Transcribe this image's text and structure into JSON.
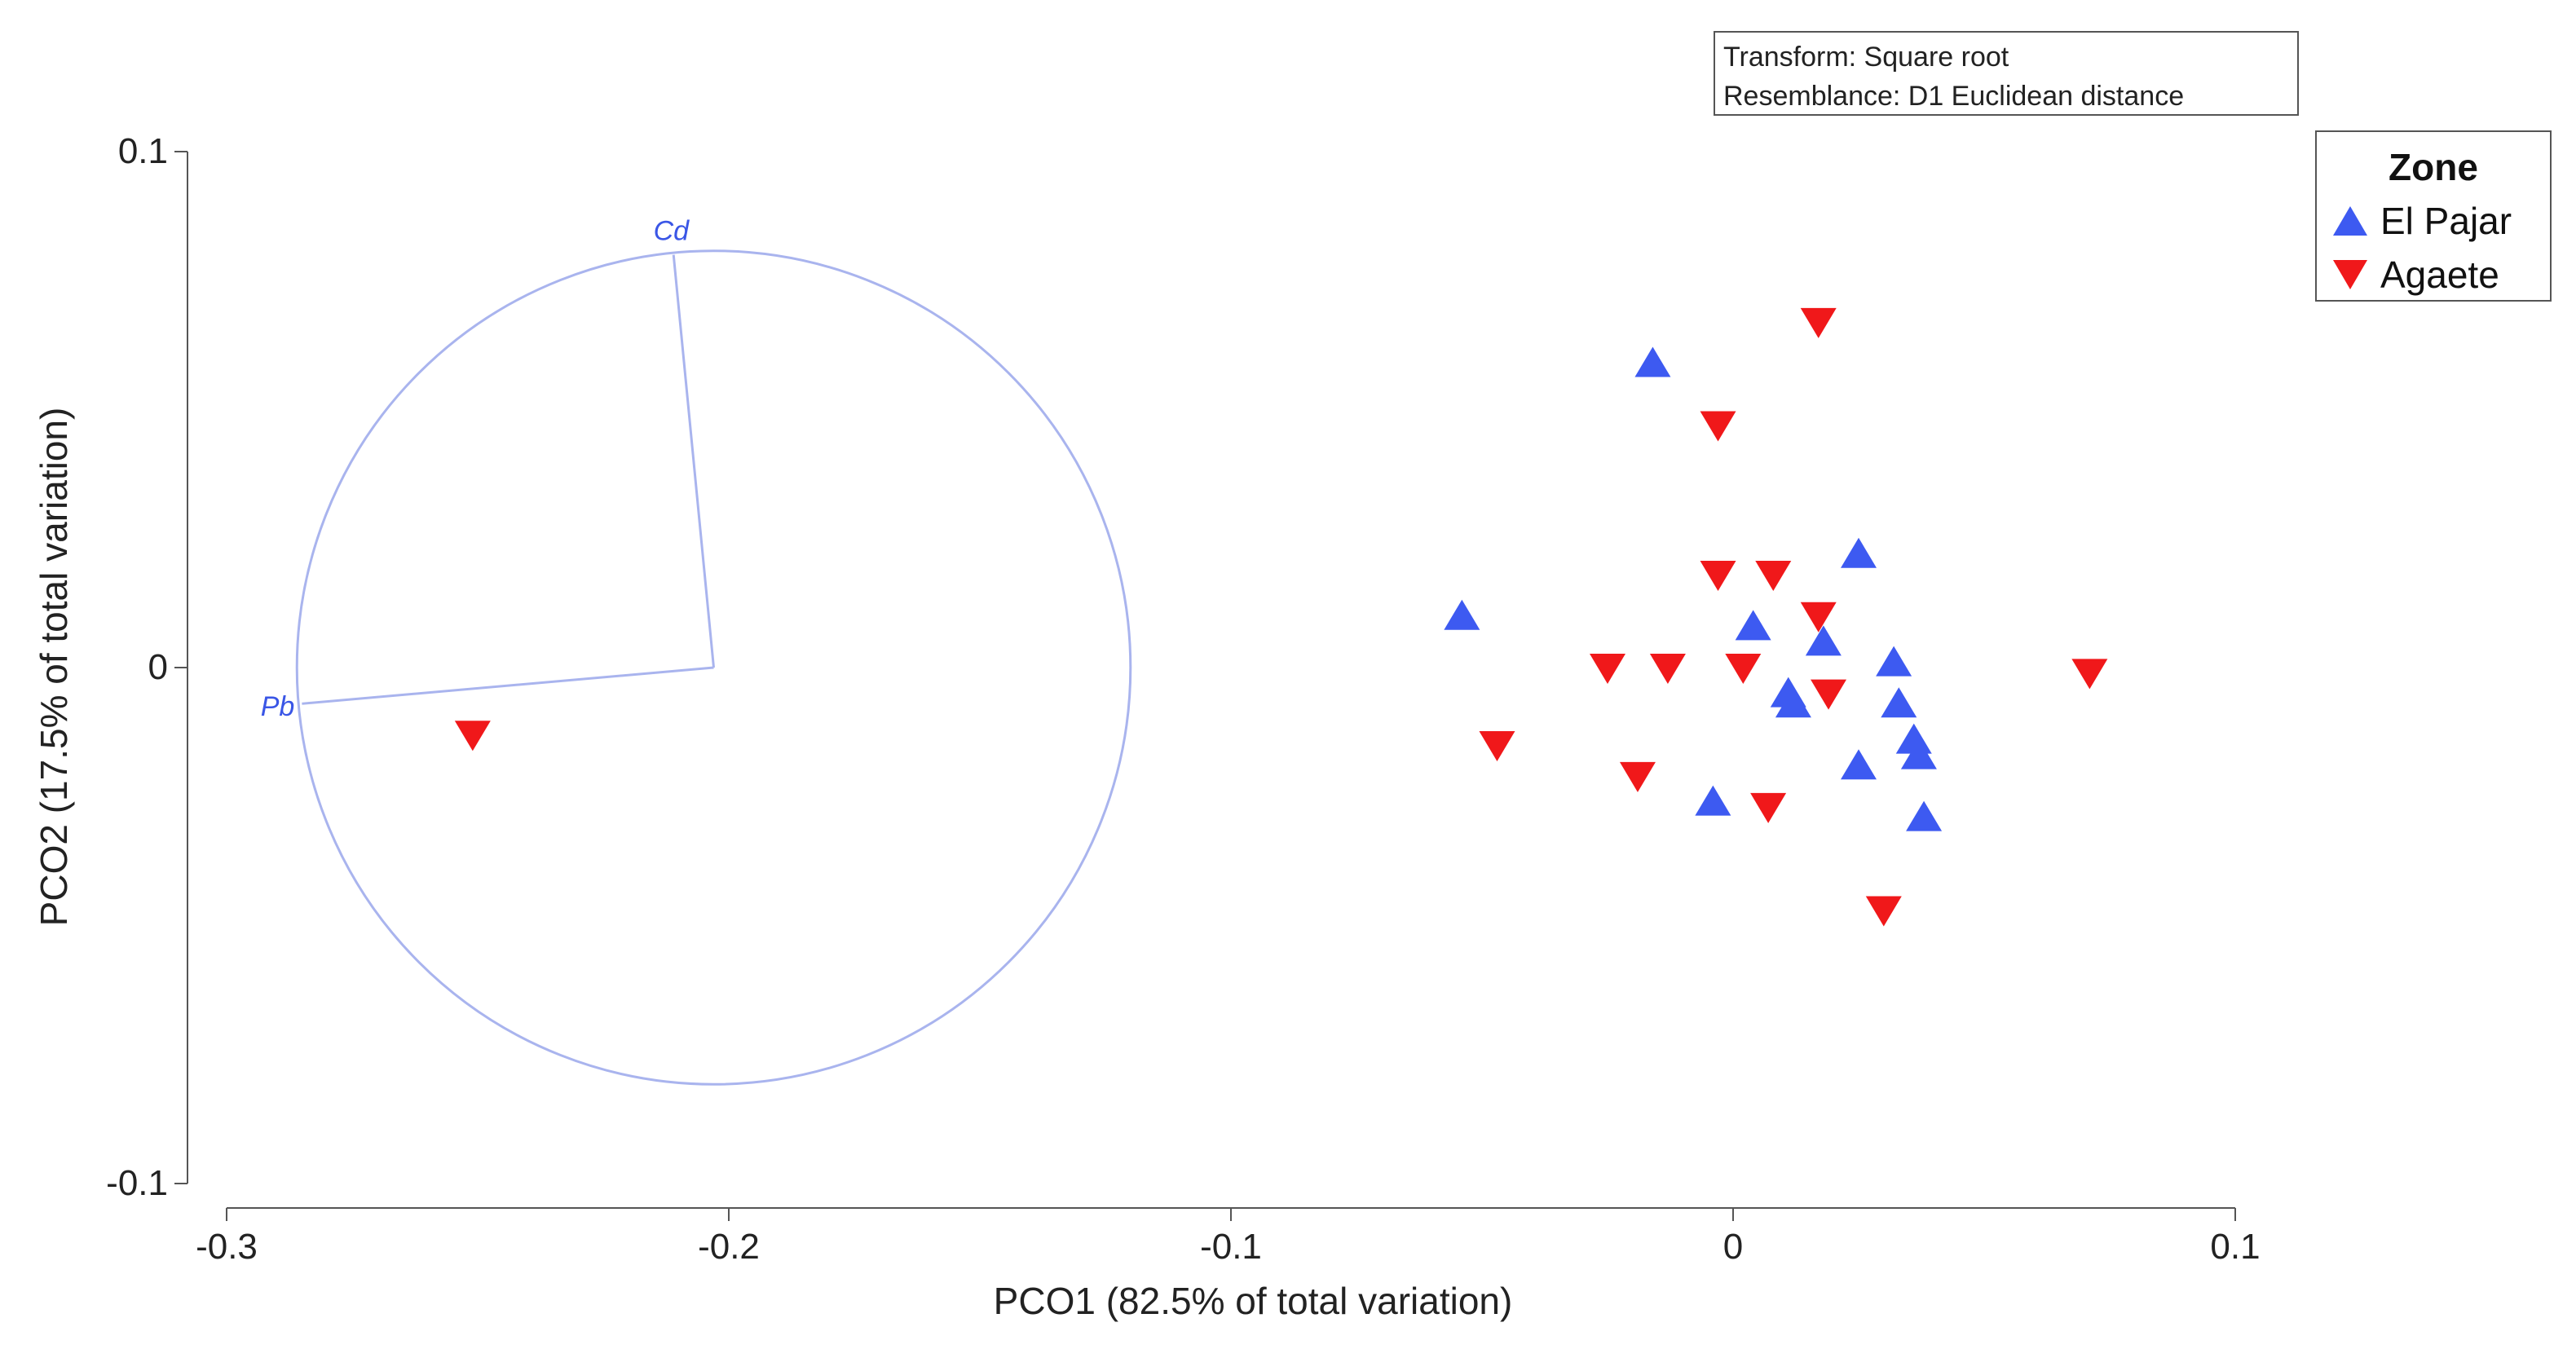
{
  "chart_data": {
    "type": "scatter",
    "title": "",
    "xlabel": "PCO1 (82.5% of total variation)",
    "ylabel": "PCO2 (17.5% of total variation)",
    "xlim": [
      -0.3,
      0.1
    ],
    "ylim": [
      -0.1,
      0.1
    ],
    "x_ticks": [
      -0.3,
      -0.2,
      -0.1,
      0,
      0.1
    ],
    "x_tick_labels": [
      "-0.3",
      "-0.2",
      "-0.1",
      "0",
      "0.1"
    ],
    "y_ticks": [
      0.1,
      0,
      -0.1
    ],
    "y_tick_labels": [
      "0.1",
      "0",
      "-0.1"
    ],
    "info": [
      "Transform: Square root",
      "Resemblance: D1 Euclidean distance"
    ],
    "legend_title": "Zone",
    "legend_position": "top-right",
    "series": [
      {
        "name": "El Pajar",
        "marker": "triangle-up",
        "color": "#3d5af1",
        "points": [
          [
            -0.016,
            0.059
          ],
          [
            -0.054,
            0.01
          ],
          [
            0.025,
            0.022
          ],
          [
            0.004,
            0.008
          ],
          [
            0.018,
            0.005
          ],
          [
            0.032,
            0.001
          ],
          [
            0.011,
            -0.005
          ],
          [
            0.012,
            -0.007
          ],
          [
            0.033,
            -0.007
          ],
          [
            0.036,
            -0.014
          ],
          [
            0.037,
            -0.017
          ],
          [
            0.025,
            -0.019
          ],
          [
            -0.004,
            -0.026
          ],
          [
            0.038,
            -0.029
          ]
        ]
      },
      {
        "name": "Agaete",
        "marker": "triangle-down",
        "color": "#f0181a",
        "points": [
          [
            -0.251,
            -0.013
          ],
          [
            0.017,
            0.067
          ],
          [
            -0.003,
            0.047
          ],
          [
            -0.003,
            0.018
          ],
          [
            0.008,
            0.018
          ],
          [
            0.017,
            0.01
          ],
          [
            -0.025,
            0.0
          ],
          [
            -0.013,
            0.0
          ],
          [
            0.002,
            0.0
          ],
          [
            0.071,
            -0.001
          ],
          [
            0.019,
            -0.005
          ],
          [
            -0.047,
            -0.015
          ],
          [
            -0.019,
            -0.021
          ],
          [
            0.007,
            -0.027
          ],
          [
            0.03,
            -0.047
          ]
        ]
      }
    ],
    "vector_overlay": {
      "circle_center": [
        -0.203,
        0.0
      ],
      "circle_radius_x": 0.083,
      "vectors": [
        {
          "label": "Cd",
          "end": [
            -0.211,
            0.08
          ]
        },
        {
          "label": "Pb",
          "end": [
            -0.285,
            -0.007
          ]
        }
      ]
    },
    "colors": {
      "axis": "#555555",
      "vector": "#a9b4ee",
      "vector_label": "#3a56e6"
    }
  }
}
